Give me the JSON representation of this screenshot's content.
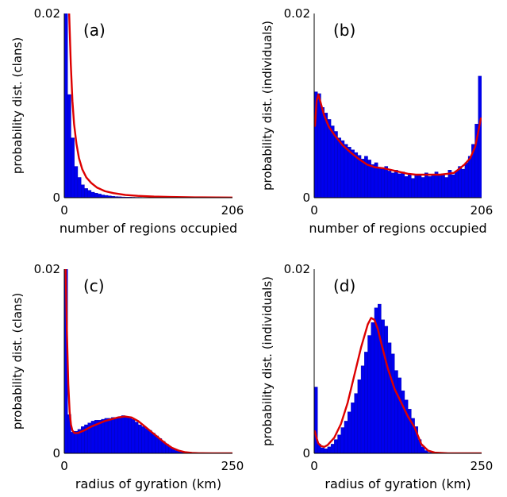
{
  "chart_data": [
    {
      "type": "bar",
      "panel_label": "(a)",
      "xlabel": "number of regions occupied",
      "ylabel": "probability dist. (clans)",
      "xlim": [
        0,
        206
      ],
      "ylim": [
        0,
        0.02
      ],
      "xticks": [
        "0",
        "206"
      ],
      "yticks": [
        "0",
        "0.02"
      ],
      "bar_color": "#0000ee",
      "line_color": "#dd0000",
      "bins": {
        "bin_width": 4.12,
        "values": [
          0.0218,
          0.0112,
          0.0065,
          0.0034,
          0.0022,
          0.0014,
          0.001,
          0.0008,
          0.0006,
          0.0005,
          0.0004,
          0.0003,
          0.00025,
          0.0002,
          0.00015,
          0.00012,
          0.0001,
          8e-05,
          7e-05,
          6e-05,
          5e-05,
          4e-05,
          4e-05,
          3e-05,
          3e-05,
          3e-05,
          2e-05,
          2e-05,
          2e-05,
          2e-05,
          1e-05,
          1e-05,
          1e-05,
          1e-05,
          1e-05,
          1e-05,
          1e-05,
          1e-05,
          1e-05,
          1e-05,
          1e-05,
          1e-05,
          1e-05,
          1e-05,
          1e-05,
          1e-05,
          1e-05,
          1e-05,
          1e-05,
          1e-05
        ]
      },
      "fit_curve": {
        "x": [
          6,
          8,
          10,
          12,
          15,
          18,
          22,
          27,
          33,
          40,
          50,
          60,
          75,
          90,
          110,
          130,
          160,
          206
        ],
        "y": [
          0.02,
          0.0145,
          0.0105,
          0.008,
          0.0058,
          0.0043,
          0.0031,
          0.0022,
          0.0016,
          0.0011,
          0.0007,
          0.0005,
          0.0003,
          0.0002,
          0.00012,
          8e-05,
          4e-05,
          2e-05
        ]
      }
    },
    {
      "type": "bar",
      "panel_label": "(b)",
      "xlabel": "number of regions occupied",
      "ylabel": "probability dist. (individuals)",
      "xlim": [
        0,
        206
      ],
      "ylim": [
        0,
        0.02
      ],
      "xticks": [
        "0",
        "206"
      ],
      "yticks": [
        "0",
        "0.02"
      ],
      "bar_color": "#0000ee",
      "line_color": "#dd0000",
      "bins": {
        "bin_width": 4.12,
        "values": [
          0.0115,
          0.0113,
          0.0098,
          0.0092,
          0.0085,
          0.0078,
          0.0072,
          0.0065,
          0.0062,
          0.0058,
          0.0055,
          0.0052,
          0.0049,
          0.0046,
          0.0042,
          0.0045,
          0.0041,
          0.0036,
          0.0038,
          0.0033,
          0.0031,
          0.0034,
          0.0029,
          0.0027,
          0.003,
          0.0026,
          0.0028,
          0.0023,
          0.0026,
          0.0021,
          0.0024,
          0.0025,
          0.0022,
          0.0027,
          0.0023,
          0.0025,
          0.0028,
          0.0024,
          0.0026,
          0.0022,
          0.003,
          0.0025,
          0.0029,
          0.0034,
          0.0031,
          0.0038,
          0.0045,
          0.0058,
          0.008,
          0.0132
        ]
      },
      "fit_curve": {
        "x": [
          1,
          3,
          5,
          8,
          12,
          18,
          25,
          35,
          45,
          55,
          65,
          75,
          85,
          95,
          105,
          115,
          125,
          135,
          145,
          155,
          165,
          172,
          178,
          185,
          192,
          198,
          202,
          205
        ],
        "y": [
          0.0078,
          0.0105,
          0.0112,
          0.0103,
          0.009,
          0.0077,
          0.0068,
          0.0057,
          0.0049,
          0.0042,
          0.0036,
          0.0033,
          0.0032,
          0.003,
          0.0028,
          0.0026,
          0.0025,
          0.0025,
          0.0025,
          0.0025,
          0.0026,
          0.0027,
          0.0031,
          0.0036,
          0.0043,
          0.0055,
          0.0072,
          0.0086
        ]
      }
    },
    {
      "type": "bar",
      "panel_label": "(c)",
      "xlabel": "radius of gyration (km)",
      "ylabel": "probability dist. (clans)",
      "xlim": [
        0,
        250
      ],
      "ylim": [
        0,
        0.02
      ],
      "xticks": [
        "0",
        "250"
      ],
      "yticks": [
        "0",
        "0.02"
      ],
      "bar_color": "#0000ee",
      "line_color": "#dd0000",
      "bins": {
        "bin_width": 5,
        "values": [
          0.021,
          0.0042,
          0.0023,
          0.0024,
          0.0026,
          0.0029,
          0.0031,
          0.0033,
          0.0035,
          0.0036,
          0.0036,
          0.0037,
          0.0038,
          0.0038,
          0.0039,
          0.0039,
          0.004,
          0.0041,
          0.004,
          0.0039,
          0.0037,
          0.0034,
          0.0031,
          0.0029,
          0.0027,
          0.0025,
          0.0022,
          0.0019,
          0.0016,
          0.0013,
          0.001,
          0.0007,
          0.0005,
          0.0003,
          0.0002,
          0.0001,
          5e-05,
          3e-05,
          2e-05,
          1e-05,
          1e-05,
          0.0,
          0.0,
          0.0,
          0.0,
          0.0,
          0.0,
          0.0,
          0.0,
          0.0
        ]
      },
      "fit_curve": {
        "x": [
          2,
          4,
          6,
          8,
          10,
          12,
          15,
          20,
          30,
          40,
          50,
          60,
          70,
          80,
          90,
          100,
          110,
          120,
          130,
          140,
          150,
          160,
          170,
          180,
          190,
          200,
          220,
          250
        ],
        "y": [
          0.02,
          0.013,
          0.0075,
          0.0045,
          0.0031,
          0.0025,
          0.0022,
          0.0022,
          0.0025,
          0.0029,
          0.0032,
          0.0035,
          0.0037,
          0.0039,
          0.004,
          0.0039,
          0.0035,
          0.0029,
          0.0023,
          0.0017,
          0.0011,
          0.0006,
          0.0003,
          0.00012,
          5e-05,
          2e-05,
          0.0,
          0.0
        ]
      }
    },
    {
      "type": "bar",
      "panel_label": "(d)",
      "xlabel": "radius of gyration (km)",
      "ylabel": "probability dist. (individuals)",
      "xlim": [
        0,
        250
      ],
      "ylim": [
        0,
        0.02
      ],
      "xticks": [
        "0",
        "250"
      ],
      "yticks": [
        "0",
        "0.02"
      ],
      "bar_color": "#0000ee",
      "line_color": "#dd0000",
      "bins": {
        "bin_width": 5,
        "values": [
          0.0072,
          0.001,
          0.0006,
          0.0005,
          0.0007,
          0.001,
          0.0015,
          0.002,
          0.0028,
          0.0035,
          0.0045,
          0.0055,
          0.0065,
          0.008,
          0.0095,
          0.011,
          0.0128,
          0.0142,
          0.0158,
          0.0162,
          0.0145,
          0.0138,
          0.012,
          0.0108,
          0.009,
          0.0082,
          0.0068,
          0.0058,
          0.0048,
          0.0038,
          0.0029,
          0.0015,
          0.0007,
          0.0003,
          0.0001,
          5e-05,
          2e-05,
          0.0,
          0.0,
          0.0,
          0.0,
          0.0,
          0.0,
          0.0,
          0.0,
          0.0,
          0.0,
          0.0,
          0.0,
          0.0
        ]
      },
      "fit_curve": {
        "x": [
          1,
          3,
          6,
          10,
          15,
          20,
          30,
          40,
          50,
          60,
          70,
          80,
          85,
          90,
          95,
          100,
          110,
          120,
          130,
          140,
          150,
          160,
          170,
          180,
          200,
          250
        ],
        "y": [
          0.0024,
          0.0018,
          0.0011,
          0.0008,
          0.0007,
          0.0009,
          0.0017,
          0.0032,
          0.0055,
          0.0085,
          0.0115,
          0.014,
          0.0147,
          0.0145,
          0.0135,
          0.012,
          0.0092,
          0.007,
          0.0055,
          0.004,
          0.0028,
          0.001,
          0.0003,
          8e-05,
          0.0,
          0.0
        ]
      }
    }
  ]
}
